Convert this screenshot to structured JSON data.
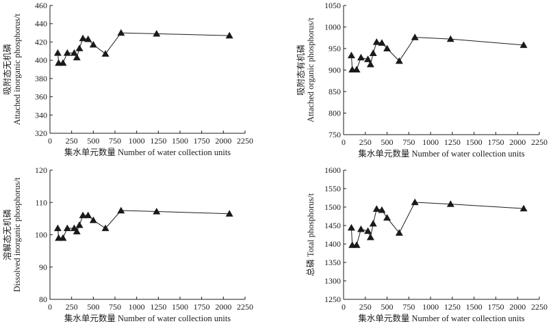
{
  "chart_data": [
    {
      "type": "line",
      "xlabel": "集水单元数量 Number of water collection units",
      "ylabel": [
        "吸附态无机磷",
        "Attached inorganic phosphorus/t"
      ],
      "xlim": [
        0,
        2250
      ],
      "ylim": [
        320,
        460
      ],
      "xticks": [
        0,
        250,
        500,
        750,
        1000,
        1250,
        1500,
        1750,
        2000,
        2250
      ],
      "yticks": [
        320,
        340,
        360,
        380,
        400,
        420,
        440,
        460
      ],
      "marker": "triangle",
      "points": [
        {
          "x": 90,
          "y": 408
        },
        {
          "x": 100,
          "y": 397
        },
        {
          "x": 150,
          "y": 397
        },
        {
          "x": 200,
          "y": 408
        },
        {
          "x": 280,
          "y": 408
        },
        {
          "x": 310,
          "y": 403
        },
        {
          "x": 340,
          "y": 413
        },
        {
          "x": 380,
          "y": 424
        },
        {
          "x": 440,
          "y": 423
        },
        {
          "x": 500,
          "y": 417
        },
        {
          "x": 640,
          "y": 407
        },
        {
          "x": 820,
          "y": 430
        },
        {
          "x": 1230,
          "y": 429
        },
        {
          "x": 2070,
          "y": 427
        }
      ]
    },
    {
      "type": "line",
      "xlabel": "集水单元数量 Number of water collection units",
      "ylabel": [
        "吸附态有机磷",
        "Attached organic phosphorus/t"
      ],
      "xlim": [
        0,
        2250
      ],
      "ylim": [
        750,
        1050
      ],
      "xticks": [
        0,
        250,
        500,
        750,
        1000,
        1250,
        1500,
        1750,
        2000,
        2250
      ],
      "yticks": [
        750,
        800,
        850,
        900,
        950,
        1000,
        1050
      ],
      "marker": "triangle",
      "points": [
        {
          "x": 90,
          "y": 934
        },
        {
          "x": 100,
          "y": 901
        },
        {
          "x": 150,
          "y": 901
        },
        {
          "x": 200,
          "y": 929
        },
        {
          "x": 280,
          "y": 925
        },
        {
          "x": 310,
          "y": 913
        },
        {
          "x": 340,
          "y": 939
        },
        {
          "x": 380,
          "y": 965
        },
        {
          "x": 440,
          "y": 963
        },
        {
          "x": 500,
          "y": 950
        },
        {
          "x": 640,
          "y": 921
        },
        {
          "x": 820,
          "y": 976
        },
        {
          "x": 1230,
          "y": 972
        },
        {
          "x": 2070,
          "y": 958
        }
      ]
    },
    {
      "type": "line",
      "xlabel": "集水单元数量 Number of water collection units",
      "ylabel": [
        "溶解态无机磷",
        "Dissolved inorganic phosphorus/t"
      ],
      "xlim": [
        0,
        2250
      ],
      "ylim": [
        80,
        120
      ],
      "xticks": [
        0,
        250,
        500,
        750,
        1000,
        1250,
        1500,
        1750,
        2000,
        2250
      ],
      "yticks": [
        80,
        90,
        100,
        110,
        120
      ],
      "marker": "triangle",
      "points": [
        {
          "x": 90,
          "y": 102
        },
        {
          "x": 100,
          "y": 99
        },
        {
          "x": 150,
          "y": 99
        },
        {
          "x": 200,
          "y": 102
        },
        {
          "x": 280,
          "y": 102
        },
        {
          "x": 310,
          "y": 101
        },
        {
          "x": 340,
          "y": 103
        },
        {
          "x": 380,
          "y": 106
        },
        {
          "x": 440,
          "y": 106
        },
        {
          "x": 500,
          "y": 104.5
        },
        {
          "x": 640,
          "y": 102
        },
        {
          "x": 820,
          "y": 107.5
        },
        {
          "x": 1230,
          "y": 107.2
        },
        {
          "x": 2070,
          "y": 106.5
        }
      ]
    },
    {
      "type": "line",
      "xlabel": "集水单元数量 Number of water collection units",
      "ylabel": [
        "总磷 Total phosphorus/t"
      ],
      "xlim": [
        0,
        2250
      ],
      "ylim": [
        1250,
        1600
      ],
      "xticks": [
        0,
        250,
        500,
        750,
        1000,
        1250,
        1500,
        1750,
        2000,
        2250
      ],
      "yticks": [
        1250,
        1300,
        1350,
        1400,
        1450,
        1500,
        1550,
        1600
      ],
      "marker": "triangle",
      "points": [
        {
          "x": 90,
          "y": 1444
        },
        {
          "x": 100,
          "y": 1397
        },
        {
          "x": 150,
          "y": 1397
        },
        {
          "x": 200,
          "y": 1440
        },
        {
          "x": 280,
          "y": 1435
        },
        {
          "x": 310,
          "y": 1418
        },
        {
          "x": 340,
          "y": 1455
        },
        {
          "x": 380,
          "y": 1495
        },
        {
          "x": 440,
          "y": 1492
        },
        {
          "x": 500,
          "y": 1471
        },
        {
          "x": 640,
          "y": 1430
        },
        {
          "x": 820,
          "y": 1513
        },
        {
          "x": 1230,
          "y": 1508
        },
        {
          "x": 2070,
          "y": 1496
        }
      ]
    }
  ]
}
